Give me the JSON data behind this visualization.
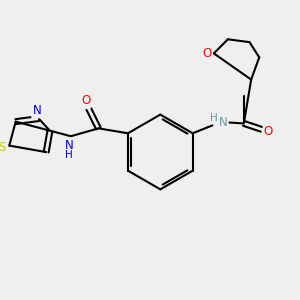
{
  "bg_color": "#efefef",
  "bond_color": "#000000",
  "bond_width": 1.5,
  "atom_colors": {
    "O": "#ff0000",
    "N": "#0000cc",
    "S": "#cccc00",
    "N_gray": "#5f9ea0",
    "C": "#000000"
  },
  "font_size": 8.5,
  "font_size_small": 7.5
}
